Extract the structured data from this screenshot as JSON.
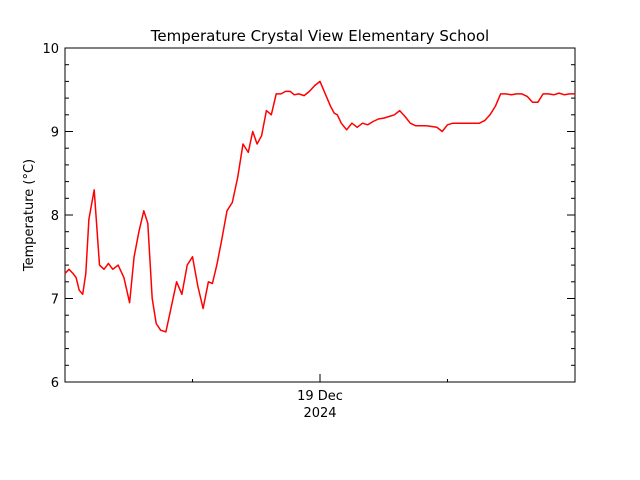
{
  "chart_data": {
    "type": "line",
    "title": "Temperature Crystal View Elementary School",
    "xlabel": "",
    "ylabel": "Temperature (°C)",
    "ylim": [
      6,
      10
    ],
    "yticks": [
      6,
      7,
      8,
      9,
      10
    ],
    "xlim": [
      "2024-12-17T00:00",
      "2024-12-21T00:00"
    ],
    "x_tick_labels": [
      {
        "at": "2024-12-19T00:00",
        "line1": "19 Dec",
        "line2": "2024"
      }
    ],
    "grid": false,
    "legend": "none",
    "series": [
      {
        "color": "#ff0000",
        "x": [
          "2024-12-17T00:00",
          "2024-12-17T00:45",
          "2024-12-17T01:30",
          "2024-12-17T02:05",
          "2024-12-17T02:40",
          "2024-12-17T03:20",
          "2024-12-17T03:55",
          "2024-12-17T04:30",
          "2024-12-17T05:30",
          "2024-12-17T06:30",
          "2024-12-17T07:20",
          "2024-12-17T08:10",
          "2024-12-17T09:00",
          "2024-12-17T10:00",
          "2024-12-17T11:05",
          "2024-12-17T12:10",
          "2024-12-17T13:00",
          "2024-12-17T13:55",
          "2024-12-17T14:50",
          "2024-12-17T15:35",
          "2024-12-17T16:25",
          "2024-12-17T17:10",
          "2024-12-17T18:00",
          "2024-12-17T19:00",
          "2024-12-17T20:00",
          "2024-12-17T21:00",
          "2024-12-17T22:00",
          "2024-12-17T23:00",
          "2024-12-18T00:00",
          "2024-12-18T01:00",
          "2024-12-18T02:00",
          "2024-12-18T03:00",
          "2024-12-18T03:45",
          "2024-12-18T04:35",
          "2024-12-18T05:30",
          "2024-12-18T06:30",
          "2024-12-18T07:30",
          "2024-12-18T08:30",
          "2024-12-18T09:30",
          "2024-12-18T10:30",
          "2024-12-18T11:20",
          "2024-12-18T12:10",
          "2024-12-18T13:00",
          "2024-12-18T13:55",
          "2024-12-18T14:50",
          "2024-12-18T15:45",
          "2024-12-18T16:40",
          "2024-12-18T17:30",
          "2024-12-18T18:25",
          "2024-12-18T19:10",
          "2024-12-18T20:00",
          "2024-12-18T21:00",
          "2024-12-18T22:00",
          "2024-12-18T23:00",
          "2024-12-19T00:00",
          "2024-12-19T01:00",
          "2024-12-19T02:00",
          "2024-12-19T02:40",
          "2024-12-19T03:15",
          "2024-12-19T04:00",
          "2024-12-19T05:00",
          "2024-12-19T06:00",
          "2024-12-19T07:00",
          "2024-12-19T08:00",
          "2024-12-19T09:00",
          "2024-12-19T10:00",
          "2024-12-19T11:00",
          "2024-12-19T12:00",
          "2024-12-19T13:00",
          "2024-12-19T14:00",
          "2024-12-19T15:00",
          "2024-12-19T16:00",
          "2024-12-19T17:00",
          "2024-12-19T18:00",
          "2024-12-19T19:00",
          "2024-12-19T20:00",
          "2024-12-19T21:00",
          "2024-12-19T22:00",
          "2024-12-19T23:00",
          "2024-12-20T00:00",
          "2024-12-20T01:00",
          "2024-12-20T02:00",
          "2024-12-20T03:00",
          "2024-12-20T04:00",
          "2024-12-20T05:00",
          "2024-12-20T06:00",
          "2024-12-20T07:00",
          "2024-12-20T08:00",
          "2024-12-20T09:00",
          "2024-12-20T10:00",
          "2024-12-20T11:00",
          "2024-12-20T12:00",
          "2024-12-20T13:00",
          "2024-12-20T14:00",
          "2024-12-20T15:00",
          "2024-12-20T16:00",
          "2024-12-20T17:00",
          "2024-12-20T18:00",
          "2024-12-20T19:00",
          "2024-12-20T20:00",
          "2024-12-20T21:00",
          "2024-12-20T22:00",
          "2024-12-20T23:00",
          "2024-12-21T00:00"
        ],
        "y": [
          7.3,
          7.35,
          7.3,
          7.25,
          7.1,
          7.05,
          7.3,
          7.95,
          8.3,
          7.4,
          7.35,
          7.42,
          7.35,
          7.4,
          7.25,
          6.95,
          7.5,
          7.8,
          8.05,
          7.9,
          7.0,
          6.7,
          6.62,
          6.6,
          6.9,
          7.2,
          7.05,
          7.4,
          7.5,
          7.15,
          6.88,
          7.2,
          7.18,
          7.4,
          7.7,
          8.05,
          8.15,
          8.45,
          8.85,
          8.75,
          9.0,
          8.85,
          8.95,
          9.25,
          9.2,
          9.45,
          9.45,
          9.48,
          9.48,
          9.44,
          9.45,
          9.43,
          9.48,
          9.55,
          9.6,
          9.45,
          9.3,
          9.22,
          9.2,
          9.1,
          9.02,
          9.1,
          9.05,
          9.1,
          9.08,
          9.12,
          9.15,
          9.16,
          9.18,
          9.2,
          9.25,
          9.18,
          9.1,
          9.07,
          9.07,
          9.07,
          9.06,
          9.05,
          9.0,
          9.08,
          9.1,
          9.1,
          9.1,
          9.1,
          9.1,
          9.1,
          9.13,
          9.2,
          9.3,
          9.45,
          9.45,
          9.44,
          9.45,
          9.45,
          9.42,
          9.35,
          9.35,
          9.45,
          9.45,
          9.44,
          9.46,
          9.44,
          9.45,
          9.45
        ]
      }
    ]
  }
}
